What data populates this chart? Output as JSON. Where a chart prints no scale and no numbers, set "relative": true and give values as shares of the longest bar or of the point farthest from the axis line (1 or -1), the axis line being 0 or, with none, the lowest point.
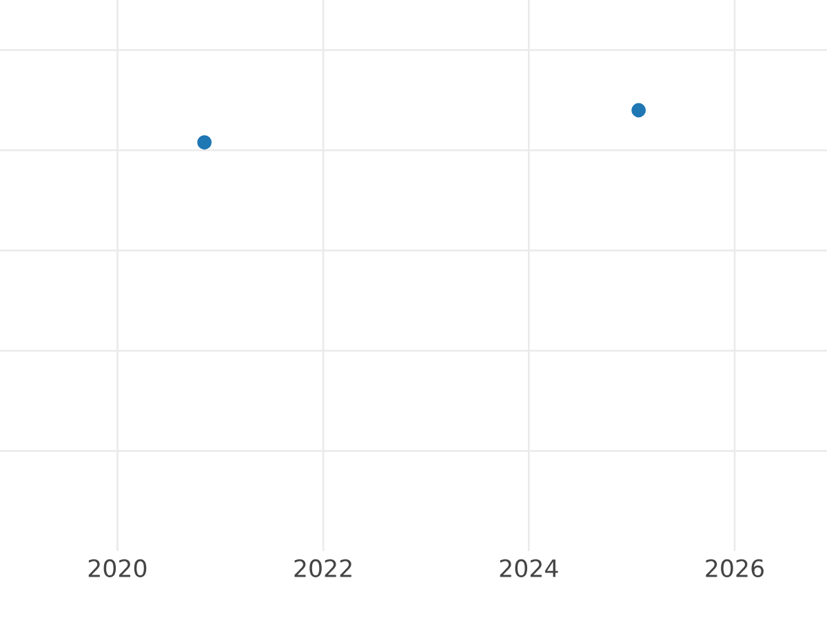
{
  "chart_data": {
    "type": "scatter",
    "relative": true,
    "x": [
      "2020-11-05",
      "2025-01-25"
    ],
    "series": [
      {
        "color": "#1f77b4",
        "values": [
          0.927,
          1
        ]
      }
    ],
    "xlim": [
      "2018-11-10",
      "2026-11-25"
    ],
    "xticks": [
      "2020",
      "2022",
      "2024",
      "2026"
    ],
    "grid": true,
    "marker": "circle",
    "legend": false
  }
}
